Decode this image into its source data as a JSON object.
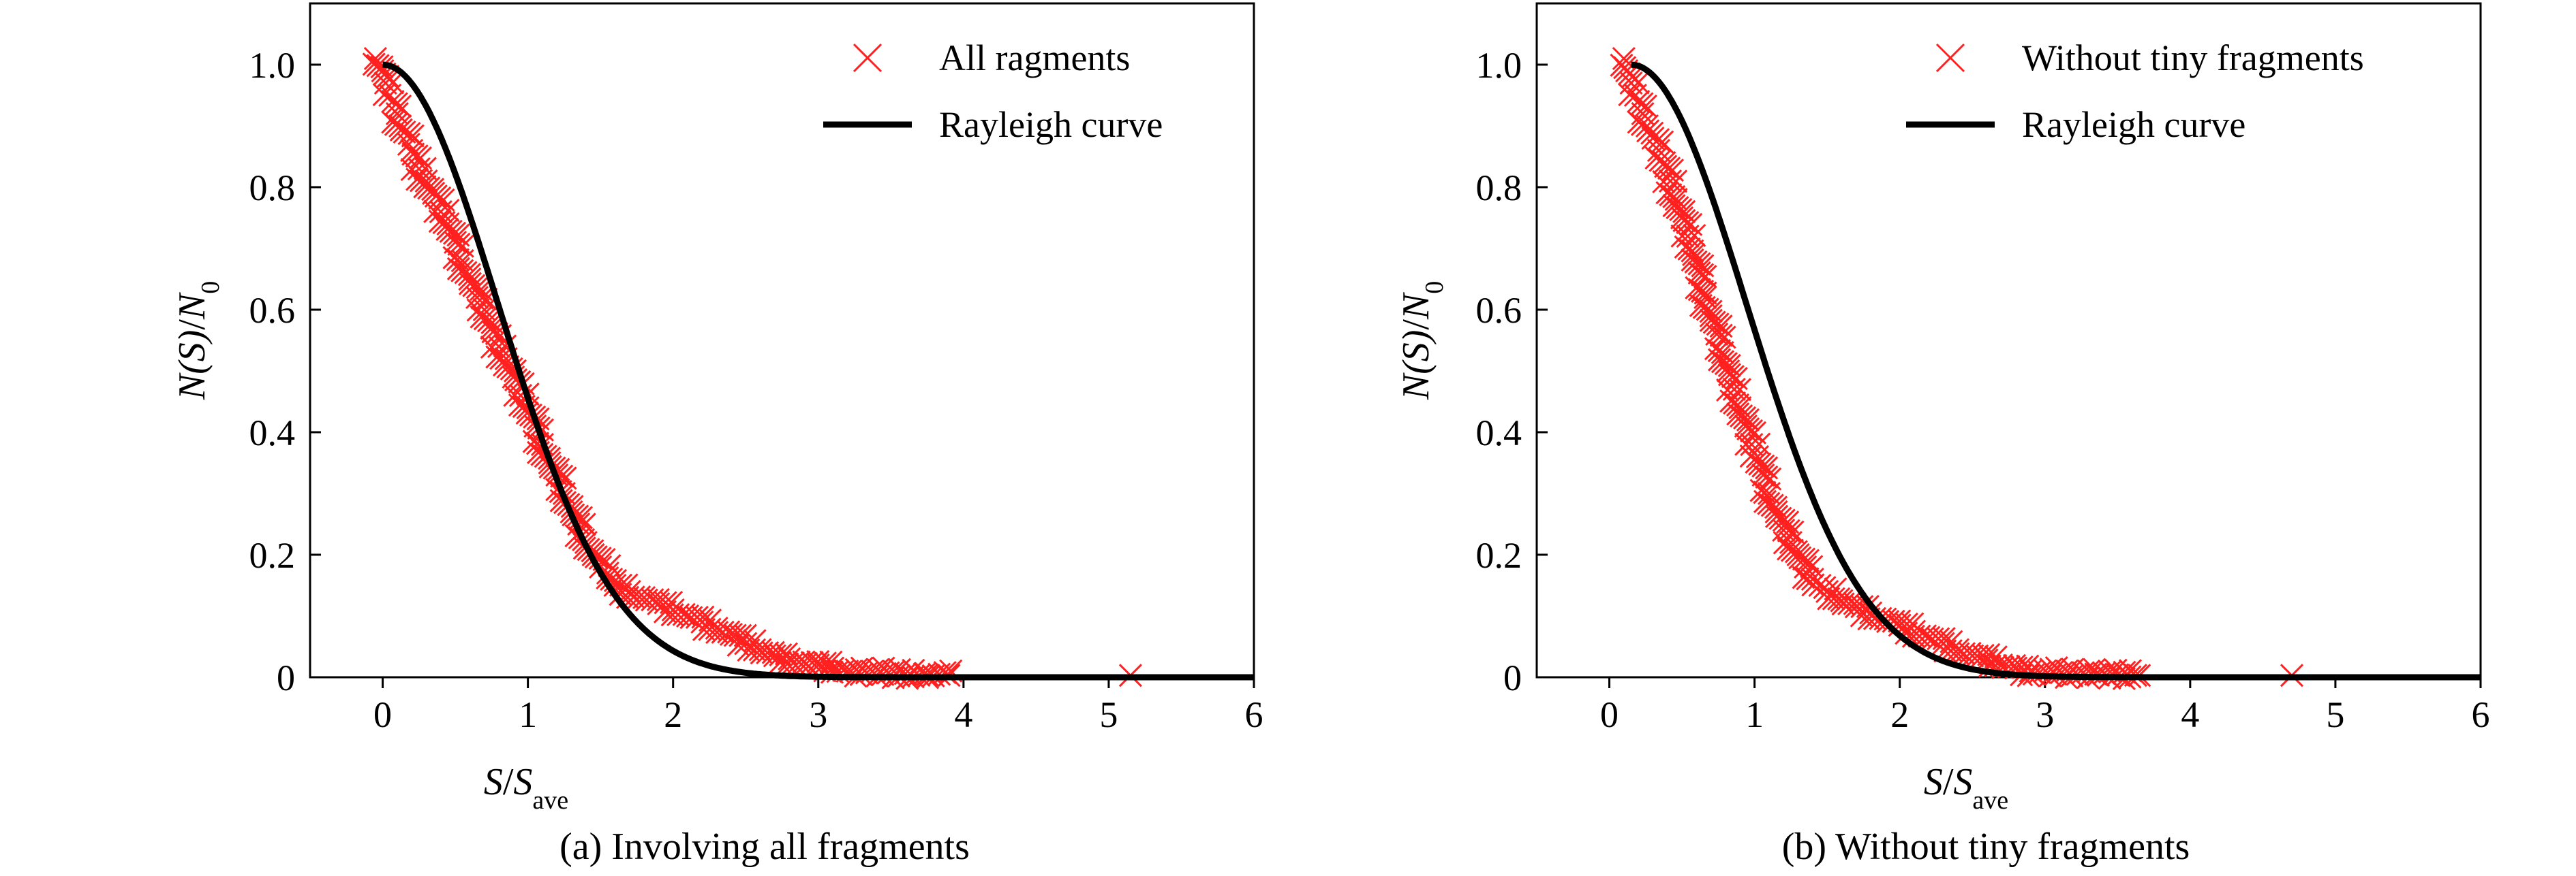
{
  "colors": {
    "marker": "#ff2020",
    "curve": "#000000",
    "axis": "#000000",
    "background": "#ffffff"
  },
  "chart_data": [
    {
      "type": "scatter",
      "caption": "(a) Involving all fragments",
      "xlabel": {
        "main": "S",
        "sep": "/",
        "sub_main": "S",
        "sub": "ave"
      },
      "ylabel": {
        "main": "N(S)",
        "sep": "/",
        "sub_main": "N",
        "sub": "0"
      },
      "xlim": [
        -0.5,
        6
      ],
      "ylim": [
        0,
        1.1
      ],
      "xticks": [
        0,
        1,
        2,
        3,
        4,
        5,
        6
      ],
      "xtick_labels": [
        "0",
        "1",
        "2",
        "3",
        "4",
        "5",
        "6"
      ],
      "yticks": [
        0,
        0.2,
        0.4,
        0.6,
        0.8,
        1.0
      ],
      "ytick_labels": [
        "0",
        "0.2",
        "0.4",
        "0.6",
        "0.8",
        "1.0"
      ],
      "grid": false,
      "legend_position": "top-right",
      "series": [
        {
          "name": "All ragments",
          "kind": "scatter",
          "marker": "x",
          "points": [
            [
              -0.05,
              1.01
            ],
            [
              0.0,
              0.99
            ],
            [
              0.02,
              0.97
            ],
            [
              0.05,
              0.95
            ],
            [
              0.07,
              0.94
            ],
            [
              0.1,
              0.92
            ],
            [
              0.12,
              0.9
            ],
            [
              0.15,
              0.89
            ],
            [
              0.18,
              0.87
            ],
            [
              0.2,
              0.86
            ],
            [
              0.25,
              0.83
            ],
            [
              0.3,
              0.81
            ],
            [
              0.35,
              0.79
            ],
            [
              0.4,
              0.76
            ],
            [
              0.45,
              0.74
            ],
            [
              0.5,
              0.71
            ],
            [
              0.55,
              0.68
            ],
            [
              0.6,
              0.65
            ],
            [
              0.65,
              0.62
            ],
            [
              0.7,
              0.6
            ],
            [
              0.75,
              0.57
            ],
            [
              0.8,
              0.54
            ],
            [
              0.85,
              0.52
            ],
            [
              0.9,
              0.49
            ],
            [
              0.95,
              0.46
            ],
            [
              1.0,
              0.44
            ],
            [
              1.05,
              0.41
            ],
            [
              1.1,
              0.38
            ],
            [
              1.15,
              0.35
            ],
            [
              1.2,
              0.33
            ],
            [
              1.25,
              0.3
            ],
            [
              1.3,
              0.27
            ],
            [
              1.35,
              0.25
            ],
            [
              1.4,
              0.22
            ],
            [
              1.45,
              0.2
            ],
            [
              1.5,
              0.18
            ],
            [
              1.55,
              0.17
            ],
            [
              1.6,
              0.15
            ],
            [
              1.7,
              0.14
            ],
            [
              1.8,
              0.13
            ],
            [
              1.9,
              0.12
            ],
            [
              2.0,
              0.11
            ],
            [
              2.1,
              0.1
            ],
            [
              2.2,
              0.09
            ],
            [
              2.3,
              0.08
            ],
            [
              2.4,
              0.07
            ],
            [
              2.5,
              0.055
            ],
            [
              2.6,
              0.045
            ],
            [
              2.7,
              0.035
            ],
            [
              2.8,
              0.03
            ],
            [
              2.9,
              0.025
            ],
            [
              3.0,
              0.02
            ],
            [
              3.1,
              0.015
            ],
            [
              3.2,
              0.01
            ],
            [
              3.6,
              0.006
            ],
            [
              3.75,
              0.004
            ],
            [
              3.9,
              0.003
            ],
            [
              5.15,
              0.003
            ]
          ]
        },
        {
          "name": "Rayleigh curve",
          "kind": "line",
          "formula": "exp(-(pi/4)*x^2)"
        }
      ]
    },
    {
      "type": "scatter",
      "caption": "(b) Without tiny fragments",
      "xlabel": {
        "main": "S",
        "sep": "/",
        "sub_main": "S",
        "sub": "ave"
      },
      "ylabel": {
        "main": "N(S)",
        "sep": "/",
        "sub_main": "N",
        "sub": "0"
      },
      "xlim": [
        -0.5,
        6
      ],
      "ylim": [
        0,
        1.1
      ],
      "xticks": [
        0,
        1,
        2,
        3,
        4,
        5,
        6
      ],
      "xtick_labels": [
        "0",
        "1",
        "2",
        "3",
        "4",
        "5",
        "6"
      ],
      "yticks": [
        0,
        0.2,
        0.4,
        0.6,
        0.8,
        1.0
      ],
      "ytick_labels": [
        "0",
        "0.2",
        "0.4",
        "0.6",
        "0.8",
        "1.0"
      ],
      "grid": false,
      "legend_position": "top-right",
      "series": [
        {
          "name": "Without tiny fragments",
          "kind": "scatter",
          "marker": "x",
          "points": [
            [
              0.1,
              1.01
            ],
            [
              0.12,
              0.99
            ],
            [
              0.15,
              0.97
            ],
            [
              0.18,
              0.95
            ],
            [
              0.2,
              0.94
            ],
            [
              0.23,
              0.92
            ],
            [
              0.26,
              0.9
            ],
            [
              0.3,
              0.88
            ],
            [
              0.34,
              0.86
            ],
            [
              0.38,
              0.84
            ],
            [
              0.42,
              0.81
            ],
            [
              0.46,
              0.78
            ],
            [
              0.5,
              0.75
            ],
            [
              0.54,
              0.72
            ],
            [
              0.58,
              0.69
            ],
            [
              0.62,
              0.66
            ],
            [
              0.66,
              0.62
            ],
            [
              0.7,
              0.59
            ],
            [
              0.74,
              0.56
            ],
            [
              0.78,
              0.53
            ],
            [
              0.82,
              0.5
            ],
            [
              0.86,
              0.47
            ],
            [
              0.9,
              0.44
            ],
            [
              0.94,
              0.41
            ],
            [
              0.98,
              0.38
            ],
            [
              1.02,
              0.36
            ],
            [
              1.06,
              0.33
            ],
            [
              1.1,
              0.3
            ],
            [
              1.15,
              0.27
            ],
            [
              1.2,
              0.24
            ],
            [
              1.25,
              0.22
            ],
            [
              1.3,
              0.2
            ],
            [
              1.35,
              0.18
            ],
            [
              1.4,
              0.16
            ],
            [
              1.45,
              0.15
            ],
            [
              1.5,
              0.14
            ],
            [
              1.6,
              0.125
            ],
            [
              1.7,
              0.115
            ],
            [
              1.8,
              0.105
            ],
            [
              1.9,
              0.095
            ],
            [
              2.0,
              0.085
            ],
            [
              2.1,
              0.075
            ],
            [
              2.2,
              0.065
            ],
            [
              2.3,
              0.055
            ],
            [
              2.4,
              0.045
            ],
            [
              2.5,
              0.035
            ],
            [
              2.6,
              0.028
            ],
            [
              2.7,
              0.02
            ],
            [
              2.8,
              0.015
            ],
            [
              2.9,
              0.01
            ],
            [
              3.35,
              0.005
            ],
            [
              3.5,
              0.004
            ],
            [
              3.65,
              0.003
            ],
            [
              4.7,
              0.003
            ]
          ]
        },
        {
          "name": "Rayleigh curve",
          "kind": "line",
          "formula": "exp(-(pi/4)*(x-0.15)^2)"
        }
      ]
    }
  ]
}
